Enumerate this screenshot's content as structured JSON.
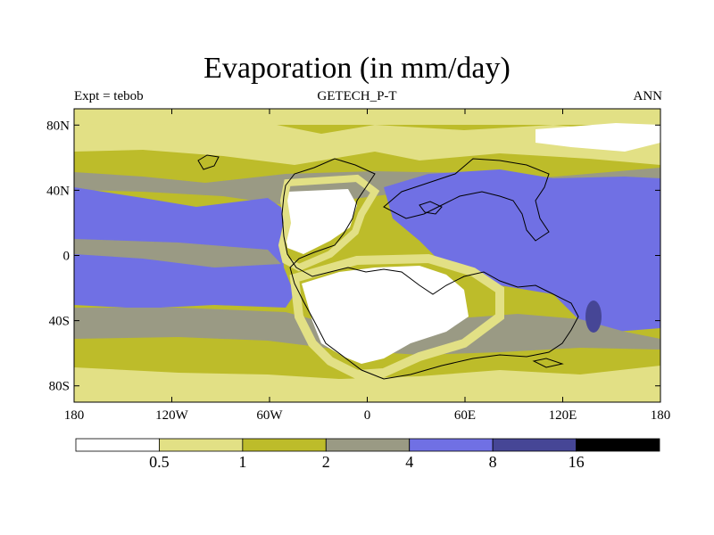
{
  "title": "Evaporation (in mm/day)",
  "subtitle_left": "Expt = tebob",
  "subtitle_center": "GETECH_P-T",
  "subtitle_right": "ANN",
  "map": {
    "projection": "cylindrical equidistant",
    "lon_range": [
      -180,
      180
    ],
    "lat_range": [
      -90,
      90
    ],
    "x_ticks": [
      {
        "value": -180,
        "label": "180"
      },
      {
        "value": -120,
        "label": "120W"
      },
      {
        "value": -60,
        "label": "60W"
      },
      {
        "value": 0,
        "label": "0"
      },
      {
        "value": 60,
        "label": "60E"
      },
      {
        "value": 120,
        "label": "120E"
      },
      {
        "value": 180,
        "label": "180"
      }
    ],
    "y_ticks": [
      {
        "value": 80,
        "label": "80N"
      },
      {
        "value": 40,
        "label": "40N"
      },
      {
        "value": 0,
        "label": "0"
      },
      {
        "value": -40,
        "label": "40S"
      },
      {
        "value": -80,
        "label": "80S"
      }
    ]
  },
  "colorbar": {
    "colors": [
      "#ffffff",
      "#e2e085",
      "#bdbc2a",
      "#9a9a84",
      "#7070e4",
      "#464696",
      "#000000"
    ],
    "labels": [
      "0.5",
      "1",
      "2",
      "4",
      "8",
      "16"
    ]
  }
}
